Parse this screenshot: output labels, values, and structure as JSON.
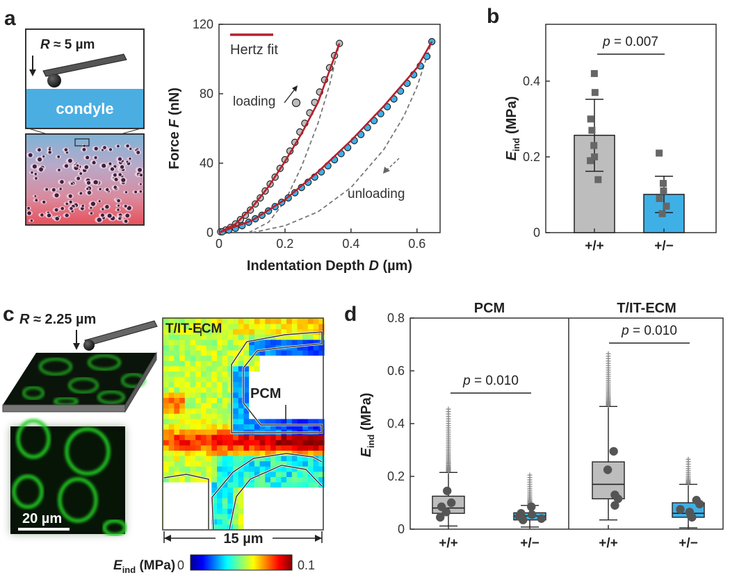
{
  "panels": {
    "a": {
      "letter": "a",
      "schematic": {
        "radius_label": "R ≈ 5 µm",
        "r_sym": "R",
        "r_val": " ≈ 5 µm",
        "tissue_label": "condyle"
      },
      "chart_id": "force_depth"
    },
    "b": {
      "letter": "b",
      "chart_id": "eind_bar"
    },
    "c": {
      "letter": "c",
      "radius_label": "R ≈ 2.25 µm",
      "r_sym": "R",
      "r_val": " ≈ 2.25 µm",
      "scale_bar": "20 µm",
      "map_labels": {
        "tit": "T/IT-ECM",
        "pcm": "PCM"
      },
      "map_width": "15 µm",
      "colorbar": {
        "label_main": "E",
        "label_sub": "ind",
        "label_unit": " (MPa)",
        "min": "0",
        "max": "0.1"
      }
    },
    "d": {
      "letter": "d",
      "chart_id": "eind_box"
    }
  },
  "colors": {
    "gray": "#bdbdbd",
    "blue": "#3fb0e6",
    "red": "#b7202e",
    "dark": "#222222",
    "green": "#2fd12f"
  },
  "chart_data": [
    {
      "id": "force_depth",
      "type": "scatter",
      "xlabel": "Indentation Depth D (µm)",
      "xlabel_parts": [
        "Indentation Depth ",
        "D",
        " (µm)"
      ],
      "ylabel": "Force F (nN)",
      "ylabel_parts": [
        "Force ",
        "F",
        " (nN)"
      ],
      "xlim": [
        0,
        0.67
      ],
      "ylim": [
        0,
        120
      ],
      "xticks": [
        "0",
        "0.2",
        "0.4",
        "0.6"
      ],
      "xtick_values": [
        0,
        0.2,
        0.4,
        0.6
      ],
      "yticks": [
        "0",
        "40",
        "80",
        "120"
      ],
      "ytick_values": [
        0,
        40,
        80,
        120
      ],
      "legend": "Hertz fit",
      "annotations": {
        "loading": "loading",
        "unloading": "unloading"
      },
      "series": [
        {
          "name": "+/+ loading",
          "color": "#bdbdbd",
          "x": [
            0.005,
            0.02,
            0.035,
            0.05,
            0.065,
            0.08,
            0.095,
            0.11,
            0.125,
            0.14,
            0.155,
            0.17,
            0.185,
            0.2,
            0.215,
            0.23,
            0.245,
            0.26,
            0.275,
            0.29,
            0.305,
            0.32,
            0.335,
            0.35,
            0.365
          ],
          "y": [
            0.5,
            1.5,
            3,
            5,
            7.5,
            10,
            13,
            16.5,
            20,
            24,
            28,
            32,
            37,
            42,
            47,
            52,
            58,
            63,
            69,
            75,
            81,
            88,
            95,
            102,
            109
          ]
        },
        {
          "name": "+/- loading",
          "color": "#3fb0e6",
          "x": [
            0.01,
            0.03,
            0.05,
            0.07,
            0.09,
            0.11,
            0.13,
            0.15,
            0.17,
            0.19,
            0.21,
            0.23,
            0.25,
            0.27,
            0.29,
            0.31,
            0.33,
            0.35,
            0.37,
            0.39,
            0.41,
            0.43,
            0.45,
            0.47,
            0.49,
            0.51,
            0.53,
            0.55,
            0.57,
            0.59,
            0.61,
            0.63,
            0.645
          ],
          "y": [
            0.5,
            1.5,
            2.5,
            4,
            6,
            8,
            10,
            12.5,
            15,
            17.5,
            20,
            23,
            26,
            29,
            32,
            35,
            38.5,
            42,
            45.5,
            49,
            53,
            56.5,
            60.5,
            64.5,
            68.5,
            72.5,
            77,
            81.5,
            86,
            91,
            96,
            101.5,
            110
          ]
        },
        {
          "name": "Hertz fit +/+",
          "x": [
            0,
            0.05,
            0.1,
            0.15,
            0.2,
            0.25,
            0.3,
            0.365
          ],
          "y": [
            0,
            5,
            14.5,
            26.5,
            41,
            57,
            75,
            109
          ]
        },
        {
          "name": "Hertz fit +/-",
          "x": [
            0,
            0.1,
            0.2,
            0.3,
            0.4,
            0.5,
            0.6,
            0.645
          ],
          "y": [
            0,
            7,
            19,
            35,
            53,
            73,
            95,
            110
          ]
        },
        {
          "name": "unloading +/+",
          "style": "dashed",
          "x": [
            0.09,
            0.15,
            0.2,
            0.25,
            0.3,
            0.335,
            0.365
          ],
          "y": [
            0,
            6,
            18,
            38,
            63,
            85,
            109
          ]
        },
        {
          "name": "unloading +/-",
          "style": "dashed",
          "x": [
            0.1,
            0.2,
            0.3,
            0.4,
            0.5,
            0.56,
            0.6,
            0.645
          ],
          "y": [
            0,
            4,
            12,
            26,
            48,
            67,
            84,
            110
          ]
        }
      ]
    },
    {
      "id": "eind_bar",
      "type": "bar",
      "ylabel_main": "E",
      "ylabel_sub": "ind",
      "ylabel_unit": " (MPa)",
      "ylim": [
        0,
        0.55
      ],
      "yticks": [
        "0",
        "0.2",
        "0.4"
      ],
      "ytick_values": [
        0,
        0.2,
        0.4
      ],
      "categories": [
        "+/+",
        "+/−"
      ],
      "values": [
        0.257,
        0.101
      ],
      "errors": [
        0.095,
        0.048
      ],
      "colors": [
        "#bdbdbd",
        "#3fb0e6"
      ],
      "points": [
        [
          0.42,
          0.37,
          0.3,
          0.27,
          0.23,
          0.2,
          0.19,
          0.14
        ],
        [
          0.21,
          0.13,
          0.11,
          0.09,
          0.07,
          0.05
        ]
      ],
      "p_value": "p = 0.007",
      "p_sym": "p",
      "p_val": " = 0.007"
    },
    {
      "id": "eind_box",
      "type": "box",
      "ylabel_main": "E",
      "ylabel_sub": "ind",
      "ylabel_unit": " (MPa)",
      "ylim": [
        0,
        0.8
      ],
      "yticks": [
        "0",
        "0.2",
        "0.4",
        "0.6",
        "0.8"
      ],
      "ytick_values": [
        0,
        0.2,
        0.4,
        0.6,
        0.8
      ],
      "groups": [
        {
          "title": "PCM",
          "p_value": "p = 0.010",
          "p_sym": "p",
          "p_val": " = 0.010",
          "boxes": [
            {
              "label": "+/+",
              "color": "#bdbdbd",
              "whisker_low": 0.012,
              "q1": 0.06,
              "median": 0.08,
              "q3": 0.125,
              "whisker_high": 0.215,
              "points": [
                0.145,
                0.1,
                0.085,
                0.065,
                0.045
              ],
              "outlier_max": 0.455
            },
            {
              "label": "+/−",
              "color": "#3fb0e6",
              "whisker_low": 0.008,
              "q1": 0.035,
              "median": 0.05,
              "q3": 0.062,
              "whisker_high": 0.09,
              "points": [
                0.085,
                0.06,
                0.055,
                0.048,
                0.04,
                0.035
              ],
              "outlier_max": 0.205
            }
          ]
        },
        {
          "title": "T/IT-ECM",
          "p_value": "p = 0.010",
          "p_sym": "p",
          "p_val": " = 0.010",
          "boxes": [
            {
              "label": "+/+",
              "color": "#bdbdbd",
              "whisker_low": 0.035,
              "q1": 0.115,
              "median": 0.17,
              "q3": 0.255,
              "whisker_high": 0.465,
              "points": [
                0.295,
                0.225,
                0.13,
                0.115,
                0.09
              ],
              "outlier_max": 0.665
            },
            {
              "label": "+/−",
              "color": "#3fb0e6",
              "whisker_low": 0.005,
              "q1": 0.045,
              "median": 0.06,
              "q3": 0.1,
              "whisker_high": 0.17,
              "points": [
                0.11,
                0.095,
                0.075,
                0.065,
                0.05,
                0.045
              ],
              "outlier_max": 0.265
            }
          ]
        }
      ]
    }
  ]
}
